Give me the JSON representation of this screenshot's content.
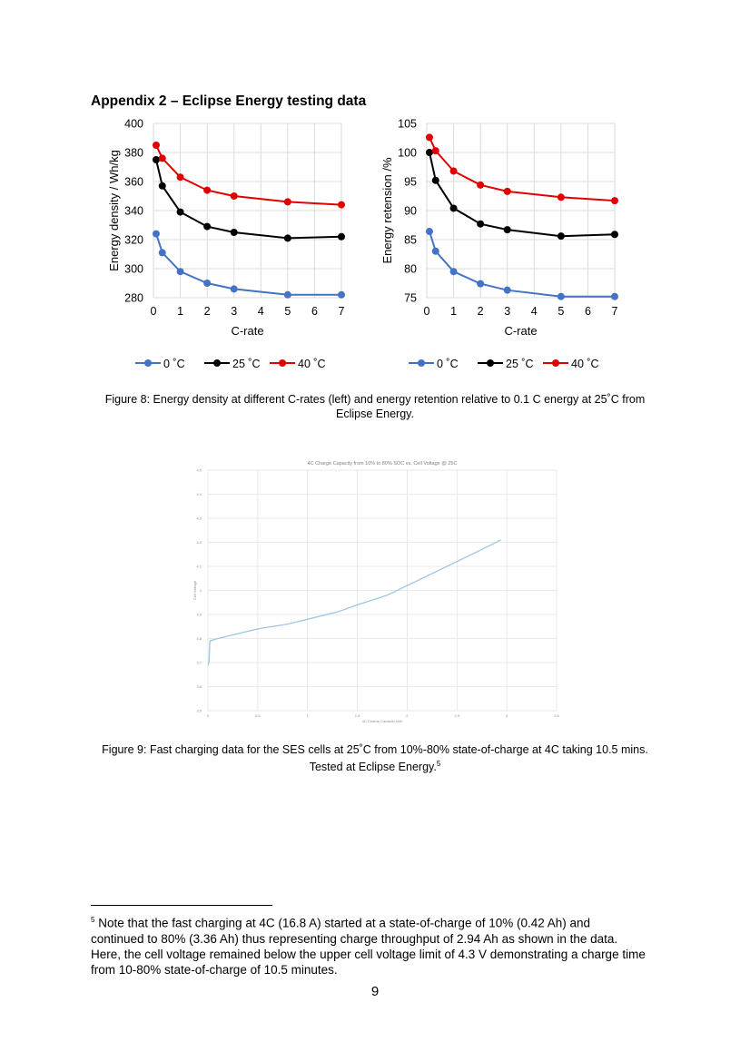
{
  "heading": "Appendix 2 – Eclipse Energy testing data",
  "figure8": {
    "caption": "Figure 8: Energy density at different C-rates (left) and energy retention relative to 0.1 C energy at 25˚C from Eclipse Energy."
  },
  "figure9": {
    "caption_text": "Figure 9: Fast charging data for the SES cells at 25˚C from 10%-80% state-of-charge at 4C taking 10.5 mins. Tested at Eclipse Energy.",
    "caption_ref": "5"
  },
  "footnote": {
    "marker": "5",
    "text": "Note that the fast charging at 4C (16.8 A) started at a state-of-charge of 10% (0.42 Ah) and continued to 80% (3.36 Ah) thus representing charge throughput of 2.94 Ah as shown in the data. Here, the cell voltage remained below the upper cell voltage limit of 4.3 V demonstrating a charge time from 10-80% state-of-charge of 10.5 minutes."
  },
  "page_number": "9",
  "colors": {
    "0C": "#4472c4",
    "25C": "#000000",
    "40C": "#e00000",
    "fig9_line": "#9dc3e6"
  },
  "chart_data": [
    {
      "type": "line",
      "xlabel": "C-rate",
      "ylabel": "Energy density / Wh/kg",
      "xlim": [
        0,
        7
      ],
      "ylim": [
        280,
        400
      ],
      "xticks": [
        "0",
        "1",
        "2",
        "3",
        "4",
        "5",
        "6",
        "7"
      ],
      "yticks": [
        "280",
        "300",
        "320",
        "340",
        "360",
        "380",
        "400"
      ],
      "grid": true,
      "legend_position": "bottom",
      "x": [
        0.1,
        0.33,
        1,
        2,
        3,
        5,
        7
      ],
      "series": [
        {
          "name": "0 ˚C",
          "color": "#4472c4",
          "values": [
            324,
            311,
            298,
            290,
            286,
            282,
            282
          ]
        },
        {
          "name": "25 ˚C",
          "color": "#000000",
          "values": [
            375,
            357,
            339,
            329,
            325,
            321,
            322
          ]
        },
        {
          "name": "40 ˚C",
          "color": "#e00000",
          "values": [
            385,
            376,
            363,
            354,
            350,
            346,
            344
          ]
        }
      ]
    },
    {
      "type": "line",
      "xlabel": "C-rate",
      "ylabel": "Energy retension /%",
      "xlim": [
        0,
        7
      ],
      "ylim": [
        75,
        105
      ],
      "xticks": [
        "0",
        "1",
        "2",
        "3",
        "4",
        "5",
        "6",
        "7"
      ],
      "yticks": [
        "75",
        "80",
        "85",
        "90",
        "95",
        "100",
        "105"
      ],
      "grid": true,
      "legend_position": "bottom",
      "x": [
        0.1,
        0.33,
        1,
        2,
        3,
        5,
        7
      ],
      "series": [
        {
          "name": "0 ˚C",
          "color": "#4472c4",
          "values": [
            86.4,
            83.0,
            79.5,
            77.4,
            76.3,
            75.2,
            75.2
          ]
        },
        {
          "name": "25 ˚C",
          "color": "#000000",
          "values": [
            100.0,
            95.2,
            90.4,
            87.7,
            86.7,
            85.6,
            85.9
          ]
        },
        {
          "name": "40 ˚C",
          "color": "#e00000",
          "values": [
            102.6,
            100.3,
            96.8,
            94.4,
            93.3,
            92.3,
            91.7
          ]
        }
      ]
    },
    {
      "type": "line",
      "title": "4C Charge Capacity from 10% to 80% SOC vs. Cell Voltage @ 25C",
      "xlabel": "4C Charge Capacity (Ah)",
      "ylabel": "Cell Voltage",
      "xlim": [
        0,
        3.5
      ],
      "ylim": [
        3.5,
        4.5
      ],
      "xticks": [
        "0",
        "0.5",
        "1",
        "1.5",
        "2",
        "2.5",
        "3",
        "3.5"
      ],
      "yticks": [
        "3.5",
        "3.6",
        "3.7",
        "3.8",
        "3.9",
        "4",
        "4.1",
        "4.2",
        "4.3",
        "4.4",
        "4.5"
      ],
      "grid": true,
      "series": [
        {
          "color": "#9dc3e6",
          "x": [
            0,
            0.01,
            0.02,
            0.1,
            0.3,
            0.5,
            0.8,
            1.0,
            1.3,
            1.5,
            1.8,
            2.0,
            2.3,
            2.5,
            2.7,
            2.94
          ],
          "values": [
            3.69,
            3.7,
            3.79,
            3.8,
            3.82,
            3.84,
            3.86,
            3.88,
            3.91,
            3.94,
            3.98,
            4.02,
            4.08,
            4.12,
            4.16,
            4.21
          ]
        }
      ]
    }
  ]
}
